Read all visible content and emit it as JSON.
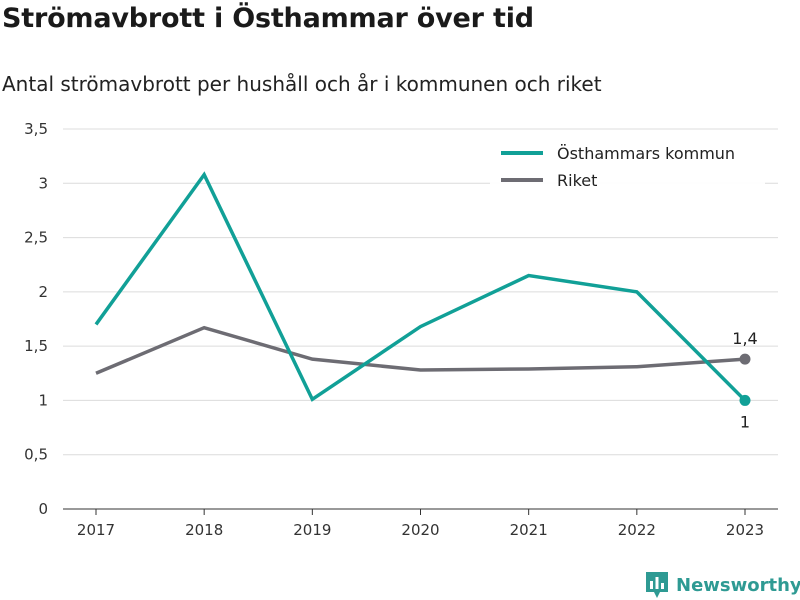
{
  "header": {
    "title": "Strömavbrott i Östhammar över tid",
    "subtitle": "Antal strömavbrott per hushåll och år i kommunen och riket"
  },
  "brand": {
    "name": "Newsworthy",
    "icon": "newsworthy-logo-icon",
    "color": "#2e9a93"
  },
  "chart_data": {
    "type": "line",
    "title": "Strömavbrott i Östhammar över tid",
    "subtitle": "Antal strömavbrott per hushåll och år i kommunen och riket",
    "x": [
      "2017",
      "2018",
      "2019",
      "2020",
      "2021",
      "2022",
      "2023"
    ],
    "ylim": [
      0,
      3.5
    ],
    "yticks": [
      0,
      0.5,
      1,
      1.5,
      2,
      2.5,
      3,
      3.5
    ],
    "ytick_labels": [
      "0",
      "0,5",
      "1",
      "1,5",
      "2",
      "2,5",
      "3",
      "3,5"
    ],
    "grid": true,
    "legend_position": "top-right",
    "series": [
      {
        "name": "Östhammars kommun",
        "color": "#11a097",
        "values": [
          1.7,
          3.08,
          1.01,
          1.68,
          2.15,
          2.0,
          1.0
        ],
        "end_label": "1",
        "end_label_position": "below"
      },
      {
        "name": "Riket",
        "color": "#6d6c73",
        "values": [
          1.25,
          1.67,
          1.38,
          1.28,
          1.29,
          1.31,
          1.38
        ],
        "end_label": "1,4",
        "end_label_position": "above"
      }
    ]
  }
}
